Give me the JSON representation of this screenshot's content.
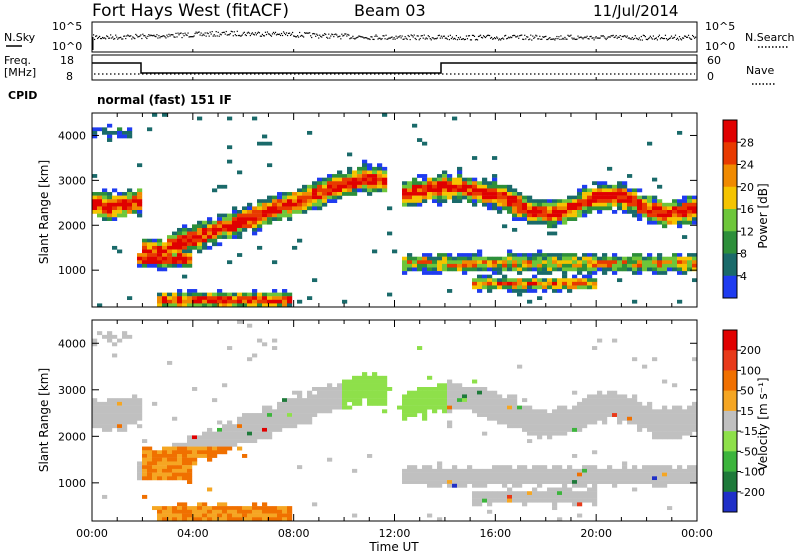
{
  "header": {
    "station": "Fort Hays West (fitACF)",
    "beam": "Beam 03",
    "date": "11/Jul/2014"
  },
  "noise_panel": {
    "left_label": "N.Sky",
    "left_ticks": [
      "10^5",
      "10^0"
    ],
    "right_label": "N.Search",
    "right_ticks": [
      "10^5",
      "10^0"
    ]
  },
  "freq_panel": {
    "left_label_1": "Freq.",
    "left_label_2": "[MHz]",
    "left_ticks": [
      "18",
      "8"
    ],
    "right_label": "Nave",
    "right_ticks": [
      "60",
      "0"
    ],
    "cpid_label": "CPID",
    "cpid_value": "normal (fast) 151 IF"
  },
  "chart_data": [
    {
      "type": "heatmap",
      "name": "power",
      "ylabel": "Slant Range [km]",
      "yticks": [
        "1000",
        "2000",
        "3000",
        "4000"
      ],
      "ylim": [
        180,
        4500
      ],
      "xlim_hours": [
        0,
        24
      ],
      "colorbar": {
        "label": "Power [dB]",
        "ticks": [
          "4",
          "8",
          "12",
          "16",
          "20",
          "24",
          "28"
        ],
        "colors": [
          "#1f3cf0",
          "#1a6a6a",
          "#2d8f3a",
          "#6ec63a",
          "#f5c400",
          "#f08a00",
          "#e83a00",
          "#e00000"
        ]
      }
    },
    {
      "type": "heatmap",
      "name": "velocity",
      "ylabel": "Slant Range [km]",
      "yticks": [
        "1000",
        "2000",
        "3000",
        "4000"
      ],
      "ylim": [
        180,
        4500
      ],
      "xlim_hours": [
        0,
        24
      ],
      "colorbar": {
        "label": "Velocity [m s⁻¹]",
        "ticks": [
          "200",
          "100",
          "50",
          "15",
          "-15",
          "-50",
          "-100",
          "-200"
        ],
        "colors": [
          "#2030c8",
          "#1e7a3a",
          "#3cb43c",
          "#8ee04a",
          "#c0c0c0",
          "#f5a623",
          "#f07000",
          "#e83a1a",
          "#e00000"
        ]
      }
    }
  ],
  "xaxis": {
    "ticks": [
      "00:00",
      "04:00",
      "08:00",
      "12:00",
      "16:00",
      "20:00",
      "00:00"
    ],
    "label": "Time UT"
  }
}
